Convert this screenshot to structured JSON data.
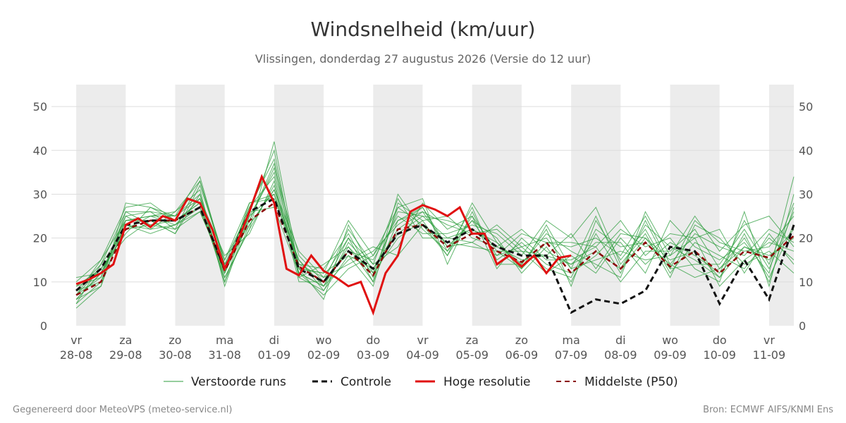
{
  "title": "Windsnelheid (km/uur)",
  "subtitle": "Vlissingen, donderdag 27 augustus 2026 (Versie do 12 uur)",
  "footer_left": "Gegenereerd door MeteoVPS (meteo-service.nl)",
  "footer_right": "Bron: ECMWF AIFS/KNMI Ens",
  "colors": {
    "ensemble": "#2e9e3e",
    "control": "#111111",
    "high_res": "#e01010",
    "median": "#8b0000",
    "band": "#ececec",
    "grid": "#dddddd"
  },
  "chart_data": {
    "type": "line",
    "ylim": [
      0,
      55
    ],
    "y_ticks": [
      0,
      10,
      20,
      30,
      40,
      50
    ],
    "xlim": [
      -0.5,
      14.5
    ],
    "x_ticks": [
      {
        "day": "vr",
        "date": "28-08"
      },
      {
        "day": "za",
        "date": "29-08"
      },
      {
        "day": "zo",
        "date": "30-08"
      },
      {
        "day": "ma",
        "date": "31-08"
      },
      {
        "day": "di",
        "date": "01-09"
      },
      {
        "day": "wo",
        "date": "02-09"
      },
      {
        "day": "do",
        "date": "03-09"
      },
      {
        "day": "vr",
        "date": "04-09"
      },
      {
        "day": "za",
        "date": "05-09"
      },
      {
        "day": "zo",
        "date": "06-09"
      },
      {
        "day": "ma",
        "date": "07-09"
      },
      {
        "day": "di",
        "date": "08-09"
      },
      {
        "day": "wo",
        "date": "09-09"
      },
      {
        "day": "do",
        "date": "10-09"
      },
      {
        "day": "vr",
        "date": "11-09"
      }
    ],
    "weekend_bands": [
      [
        0,
        1
      ],
      [
        2,
        3
      ],
      [
        4,
        5
      ],
      [
        6,
        7
      ],
      [
        8,
        9
      ],
      [
        10,
        11
      ],
      [
        12,
        13
      ],
      [
        14,
        14.5
      ]
    ],
    "legend": [
      "Verstoorde runs",
      "Controle",
      "Hoge resolutie",
      "Middelste (P50)"
    ],
    "high_res": {
      "name": "Hoge resolutie",
      "x": [
        0,
        0.25,
        0.5,
        0.75,
        1,
        1.25,
        1.5,
        1.75,
        2,
        2.25,
        2.5,
        2.75,
        3,
        3.25,
        3.5,
        3.75,
        4,
        4.25,
        4.5,
        4.75,
        5,
        5.25,
        5.5,
        5.75,
        6,
        6.25,
        6.5,
        6.75,
        7,
        7.25,
        7.5,
        7.75,
        8,
        8.25,
        8.5,
        8.75,
        9,
        9.25,
        9.5,
        9.75,
        10
      ],
      "y": [
        9.5,
        10.5,
        12,
        14,
        23,
        24.5,
        22.5,
        25,
        24,
        29,
        28,
        22,
        13,
        19,
        26,
        34,
        28,
        13,
        11.5,
        16,
        12.5,
        11,
        9,
        10,
        3,
        12,
        16,
        26,
        27.5,
        26.5,
        25,
        27,
        21,
        21,
        14,
        16,
        13.5,
        16,
        12,
        15.5,
        16
      ]
    },
    "control": {
      "name": "Controle",
      "x": [
        0,
        0.5,
        1,
        1.5,
        2,
        2.5,
        3,
        3.5,
        4,
        4.5,
        5,
        5.5,
        6,
        6.5,
        7,
        7.5,
        8,
        8.5,
        9,
        9.5,
        10,
        10.5,
        11,
        11.5,
        12,
        12.5,
        13,
        13.5,
        14,
        14.5
      ],
      "y": [
        8,
        13,
        23,
        24,
        24,
        27,
        13,
        26,
        29,
        13,
        10,
        17,
        13,
        21,
        23,
        19,
        22,
        18,
        16,
        16,
        3,
        6,
        5,
        8,
        18,
        17,
        5,
        15,
        6,
        23
      ]
    },
    "median": {
      "name": "Middelste (P50)",
      "x": [
        0,
        0.5,
        1,
        1.5,
        2,
        2.5,
        3,
        3.5,
        4,
        4.5,
        5,
        5.5,
        6,
        6.5,
        7,
        7.5,
        8,
        8.5,
        9,
        9.5,
        10,
        10.5,
        11,
        11.5,
        12,
        12.5,
        13,
        13.5,
        14,
        14.5
      ],
      "y": [
        7,
        10,
        22,
        24,
        24,
        27,
        12.5,
        24,
        28,
        13.5,
        10,
        17,
        11.5,
        22,
        23,
        18,
        21,
        17,
        14.5,
        19,
        12,
        17,
        13,
        19,
        13.5,
        17,
        12,
        17,
        15.5,
        20.5
      ]
    },
    "ensemble_x": [
      0,
      0.5,
      1,
      1.5,
      2,
      2.5,
      3,
      3.5,
      4,
      4.5,
      5,
      5.5,
      6,
      6.5,
      7,
      7.5,
      8,
      8.5,
      9,
      9.5,
      10,
      10.5,
      11,
      11.5,
      12,
      12.5,
      13,
      13.5,
      14,
      14.5
    ],
    "ensemble": [
      [
        6,
        12,
        24,
        25,
        25,
        29,
        12,
        25,
        30,
        12,
        9,
        18,
        12,
        26,
        25,
        20,
        22,
        18,
        15,
        16,
        14,
        17,
        13,
        20,
        15,
        17,
        11,
        18,
        16,
        20
      ],
      [
        8,
        14,
        22,
        23,
        24,
        28,
        10,
        23,
        31,
        14,
        11,
        20,
        10,
        30,
        22,
        17,
        24,
        20,
        12,
        18,
        10,
        21,
        12,
        24,
        13,
        14,
        14,
        22,
        13,
        26
      ],
      [
        5,
        10,
        26,
        26,
        22,
        33,
        14,
        27,
        34,
        12,
        7,
        13,
        16,
        24,
        27,
        18,
        19,
        16,
        18,
        20,
        13,
        15,
        17,
        15,
        16,
        20,
        9,
        15,
        19,
        17
      ],
      [
        9,
        11,
        25,
        22,
        23,
        26,
        13,
        24,
        36,
        16,
        10,
        22,
        14,
        18,
        28,
        22,
        25,
        13,
        20,
        15,
        15,
        18,
        10,
        17,
        17,
        22,
        13,
        20,
        11,
        23
      ],
      [
        7,
        13,
        21,
        27,
        25,
        30,
        11,
        22,
        32,
        13,
        12,
        16,
        9,
        28,
        24,
        16,
        28,
        19,
        14,
        22,
        9,
        24,
        15,
        22,
        12,
        19,
        16,
        13,
        20,
        15
      ],
      [
        4,
        9,
        24,
        24,
        21,
        32,
        15,
        26,
        40,
        11,
        8,
        19,
        13,
        22,
        26,
        23,
        21,
        22,
        17,
        12,
        16,
        12,
        20,
        14,
        19,
        16,
        12,
        24,
        14,
        28
      ],
      [
        10,
        15,
        27,
        28,
        24,
        27,
        12,
        28,
        29,
        15,
        9,
        15,
        18,
        16,
        23,
        19,
        18,
        17,
        13,
        19,
        18,
        20,
        16,
        25,
        14,
        21,
        18,
        16,
        22,
        19
      ],
      [
        6,
        12,
        22,
        25,
        26,
        31,
        9,
        25,
        35,
        14,
        13,
        21,
        11,
        27,
        29,
        14,
        26,
        15,
        19,
        14,
        12,
        16,
        22,
        18,
        20,
        13,
        10,
        26,
        9,
        30
      ],
      [
        8,
        10,
        23,
        21,
        23,
        29,
        16,
        21,
        33,
        10,
        10,
        17,
        15,
        25,
        21,
        21,
        23,
        21,
        16,
        24,
        20,
        27,
        14,
        21,
        11,
        23,
        20,
        14,
        17,
        12
      ],
      [
        5,
        14,
        26,
        23,
        22,
        26,
        13,
        27,
        38,
        13,
        6,
        23,
        12,
        20,
        24,
        25,
        20,
        18,
        22,
        17,
        14,
        19,
        19,
        12,
        24,
        18,
        15,
        19,
        12,
        34
      ],
      [
        7,
        11,
        25,
        26,
        25,
        34,
        14,
        23,
        31,
        17,
        11,
        14,
        17,
        23,
        27,
        17,
        27,
        14,
        14,
        21,
        17,
        14,
        11,
        26,
        16,
        25,
        17,
        23,
        25,
        18
      ],
      [
        9,
        13,
        20,
        24,
        21,
        30,
        10,
        26,
        27,
        12,
        9,
        20,
        14,
        29,
        20,
        20,
        19,
        23,
        18,
        13,
        11,
        22,
        18,
        19,
        14,
        11,
        13,
        18,
        15,
        22
      ],
      [
        6,
        9,
        28,
        27,
        24,
        28,
        12,
        24,
        37,
        11,
        14,
        18,
        10,
        24,
        26,
        18,
        24,
        16,
        21,
        19,
        19,
        18,
        24,
        16,
        21,
        20,
        22,
        12,
        21,
        14
      ],
      [
        11,
        12,
        23,
        22,
        26,
        33,
        15,
        28,
        30,
        15,
        8,
        16,
        13,
        21,
        25,
        24,
        22,
        19,
        13,
        23,
        13,
        25,
        13,
        23,
        18,
        15,
        11,
        21,
        10,
        27
      ],
      [
        7,
        15,
        24,
        25,
        23,
        27,
        11,
        22,
        42,
        13,
        12,
        24,
        16,
        27,
        23,
        16,
        25,
        17,
        17,
        16,
        21,
        13,
        21,
        20,
        13,
        24,
        19,
        17,
        18,
        25
      ]
    ]
  }
}
